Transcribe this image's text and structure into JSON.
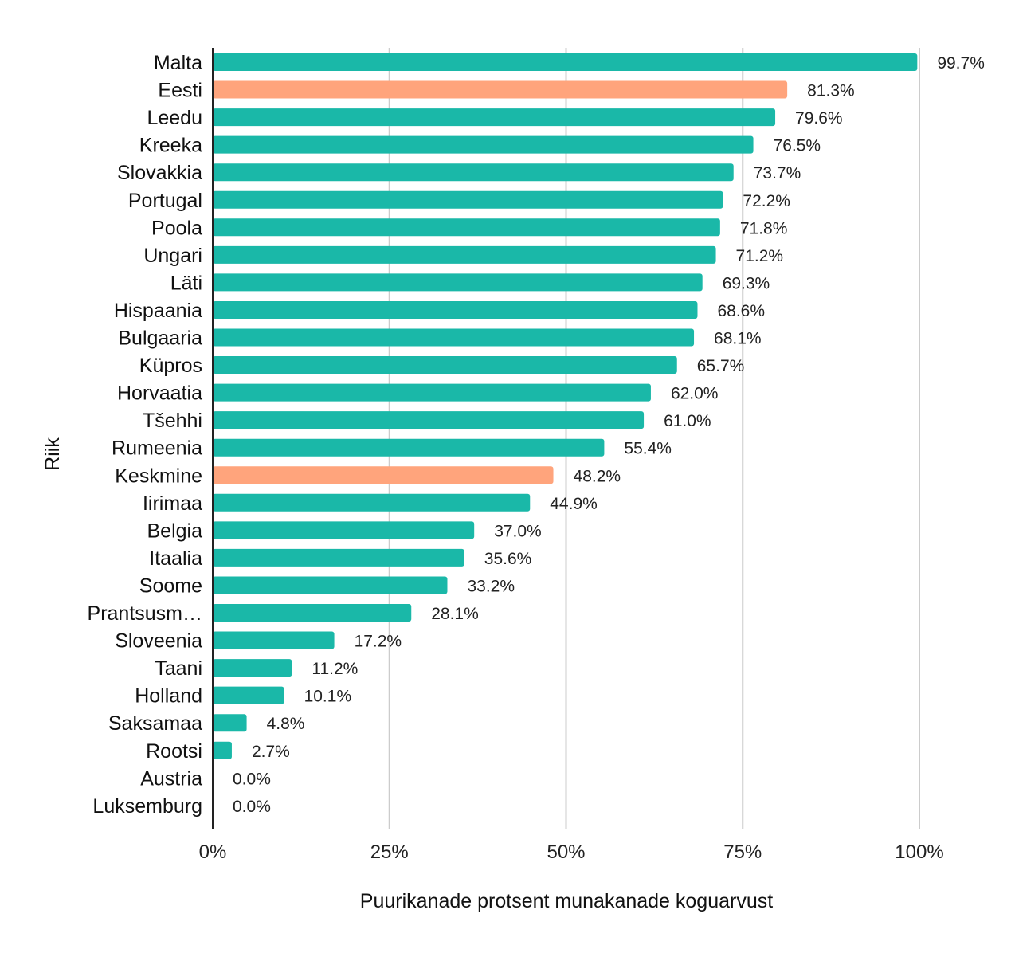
{
  "chart_data": {
    "type": "bar",
    "orientation": "horizontal",
    "xlabel": "Puurikanade protsent munakanade koguarvust",
    "ylabel": "Riik",
    "xlim": [
      0,
      100
    ],
    "x_ticks": [
      "0%",
      "25%",
      "50%",
      "75%",
      "100%"
    ],
    "x_tick_values": [
      0,
      25,
      50,
      75,
      100
    ],
    "grid": "vertical",
    "legend": "none",
    "categories": [
      "Malta",
      "Eesti",
      "Leedu",
      "Kreeka",
      "Slovakkia",
      "Portugal",
      "Poola",
      "Ungari",
      "Läti",
      "Hispaania",
      "Bulgaaria",
      "Küpros",
      "Horvaatia",
      "Tšehhi",
      "Rumeenia",
      "Keskmine",
      "Iirimaa",
      "Belgia",
      "Itaalia",
      "Soome",
      "Prantsusm…",
      "Sloveenia",
      "Taani",
      "Holland",
      "Saksamaa",
      "Rootsi",
      "Austria",
      "Luksemburg"
    ],
    "values": [
      99.7,
      81.3,
      79.6,
      76.5,
      73.7,
      72.2,
      71.8,
      71.2,
      69.3,
      68.6,
      68.1,
      65.7,
      62.0,
      61.0,
      55.4,
      48.2,
      44.9,
      37.0,
      35.6,
      33.2,
      28.1,
      17.2,
      11.2,
      10.1,
      4.8,
      2.7,
      0.0,
      0.0
    ],
    "value_labels": [
      "99.7%",
      "81.3%",
      "79.6%",
      "76.5%",
      "73.7%",
      "72.2%",
      "71.8%",
      "71.2%",
      "69.3%",
      "68.6%",
      "68.1%",
      "65.7%",
      "62.0%",
      "61.0%",
      "55.4%",
      "48.2%",
      "44.9%",
      "37.0%",
      "35.6%",
      "33.2%",
      "28.1%",
      "17.2%",
      "11.2%",
      "10.1%",
      "4.8%",
      "2.7%",
      "0.0%",
      "0.0%"
    ],
    "highlighted": [
      "Eesti",
      "Keskmine"
    ],
    "colors": {
      "default": "#1ab8a8",
      "highlight": "#ffa47c",
      "grid": "#cccccc",
      "axis": "#222222"
    }
  }
}
